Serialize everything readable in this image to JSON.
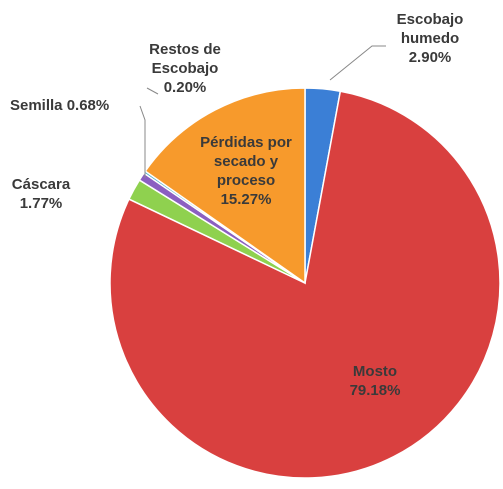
{
  "chart_data": {
    "type": "pie",
    "categories": [
      "Escobajo humedo",
      "Mosto",
      "Cáscara",
      "Semilla",
      "Restos de Escobajo",
      "Pérdidas por secado y proceso"
    ],
    "values": [
      2.9,
      79.18,
      1.77,
      0.68,
      0.2,
      15.27
    ],
    "value_labels": [
      "2.90%",
      "79.18%",
      "1.77%",
      "0.68%",
      "0.20%",
      "15.27%"
    ],
    "colors": [
      "#3b7fd6",
      "#d9403f",
      "#8fd14f",
      "#8b5fc1",
      "#4bacc6",
      "#f79a2c"
    ]
  }
}
